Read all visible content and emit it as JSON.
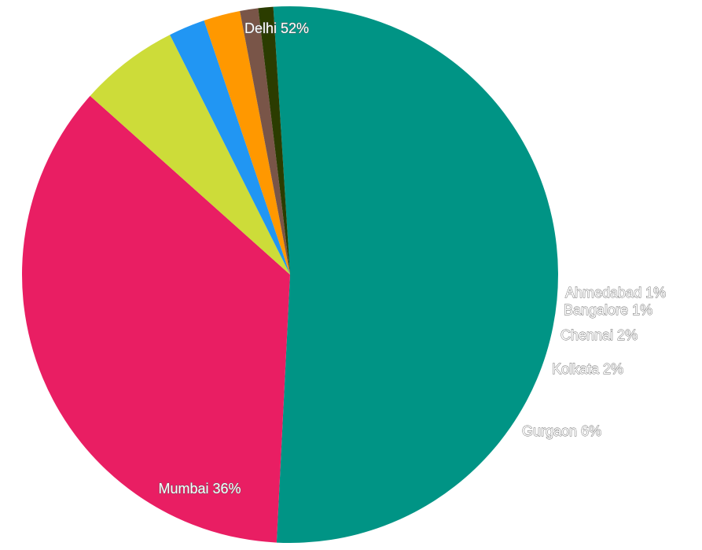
{
  "chart_data": {
    "type": "pie",
    "title": "",
    "slices": [
      {
        "label": "Delhi 52%",
        "name": "Delhi",
        "percent": 51.8,
        "color": "#009485"
      },
      {
        "label": "Mumbai 36%",
        "name": "Mumbai",
        "percent": 35.8,
        "color": "#e91e63"
      },
      {
        "label": "Gurgaon 6%",
        "name": "Gurgaon",
        "percent": 6.0,
        "color": "#cddc39"
      },
      {
        "label": "Kolkata 2%",
        "name": "Kolkata",
        "percent": 2.2,
        "color": "#2196f3"
      },
      {
        "label": "Chennai 2%",
        "name": "Chennai",
        "percent": 2.2,
        "color": "#ff9800"
      },
      {
        "label": "Bangalore 1%",
        "name": "Bangalore",
        "percent": 1.1,
        "color": "#795548"
      },
      {
        "label": "Ahmedabad 1%",
        "name": "Ahmedabad",
        "percent": 0.9,
        "color": "#2b3c00"
      }
    ]
  }
}
